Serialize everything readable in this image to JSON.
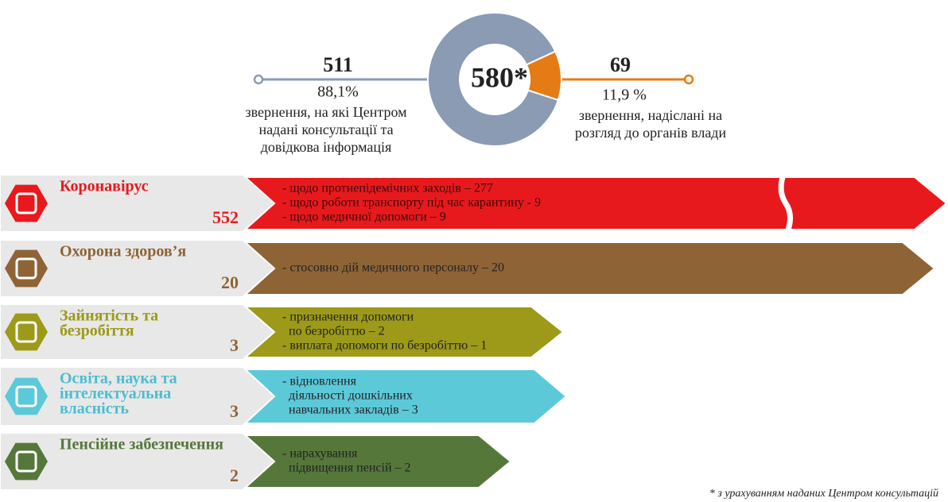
{
  "summary": {
    "total": "580*",
    "left": {
      "value": 511,
      "percent": "88,1%",
      "lines": [
        "звернення, на які Центром",
        "надані консультації та",
        "довідкова інформація"
      ]
    },
    "right": {
      "value": 69,
      "percent": "11,9 %",
      "lines": [
        "звернення, надіслані на",
        "розгляд до органів влади"
      ]
    }
  },
  "rows": [
    {
      "title": [
        "Коронавірус"
      ],
      "count": 552,
      "items": [
        "- щодо протиепідемічних заходів – 277",
        "- щодо роботи транспорту під час карантину - 9",
        "- щодо медичної допомоги – 9"
      ]
    },
    {
      "title": [
        "Охорона здоров’я"
      ],
      "count": 20,
      "items": [
        "- стосовно дій медичного персоналу – 20"
      ]
    },
    {
      "title": [
        "Зайнятість та",
        "безробіття"
      ],
      "count": 3,
      "items": [
        "- призначення допомоги",
        "  по безробіттю – 2",
        "- виплата допомоги по безробіттю – 1"
      ]
    },
    {
      "title": [
        "Освіта, наука та",
        "інтелектуальна",
        "власність"
      ],
      "count": 3,
      "items": [
        "- відновлення",
        "  діяльності дошкільних",
        "  навчальних закладів – 3"
      ]
    },
    {
      "title": [
        "Пенсійне забезпечення"
      ],
      "count": 2,
      "items": [
        "- нарахування",
        "  підвищення пенсій – 2"
      ]
    }
  ],
  "footnote": "* з урахуванням наданих Центром консультацій"
}
